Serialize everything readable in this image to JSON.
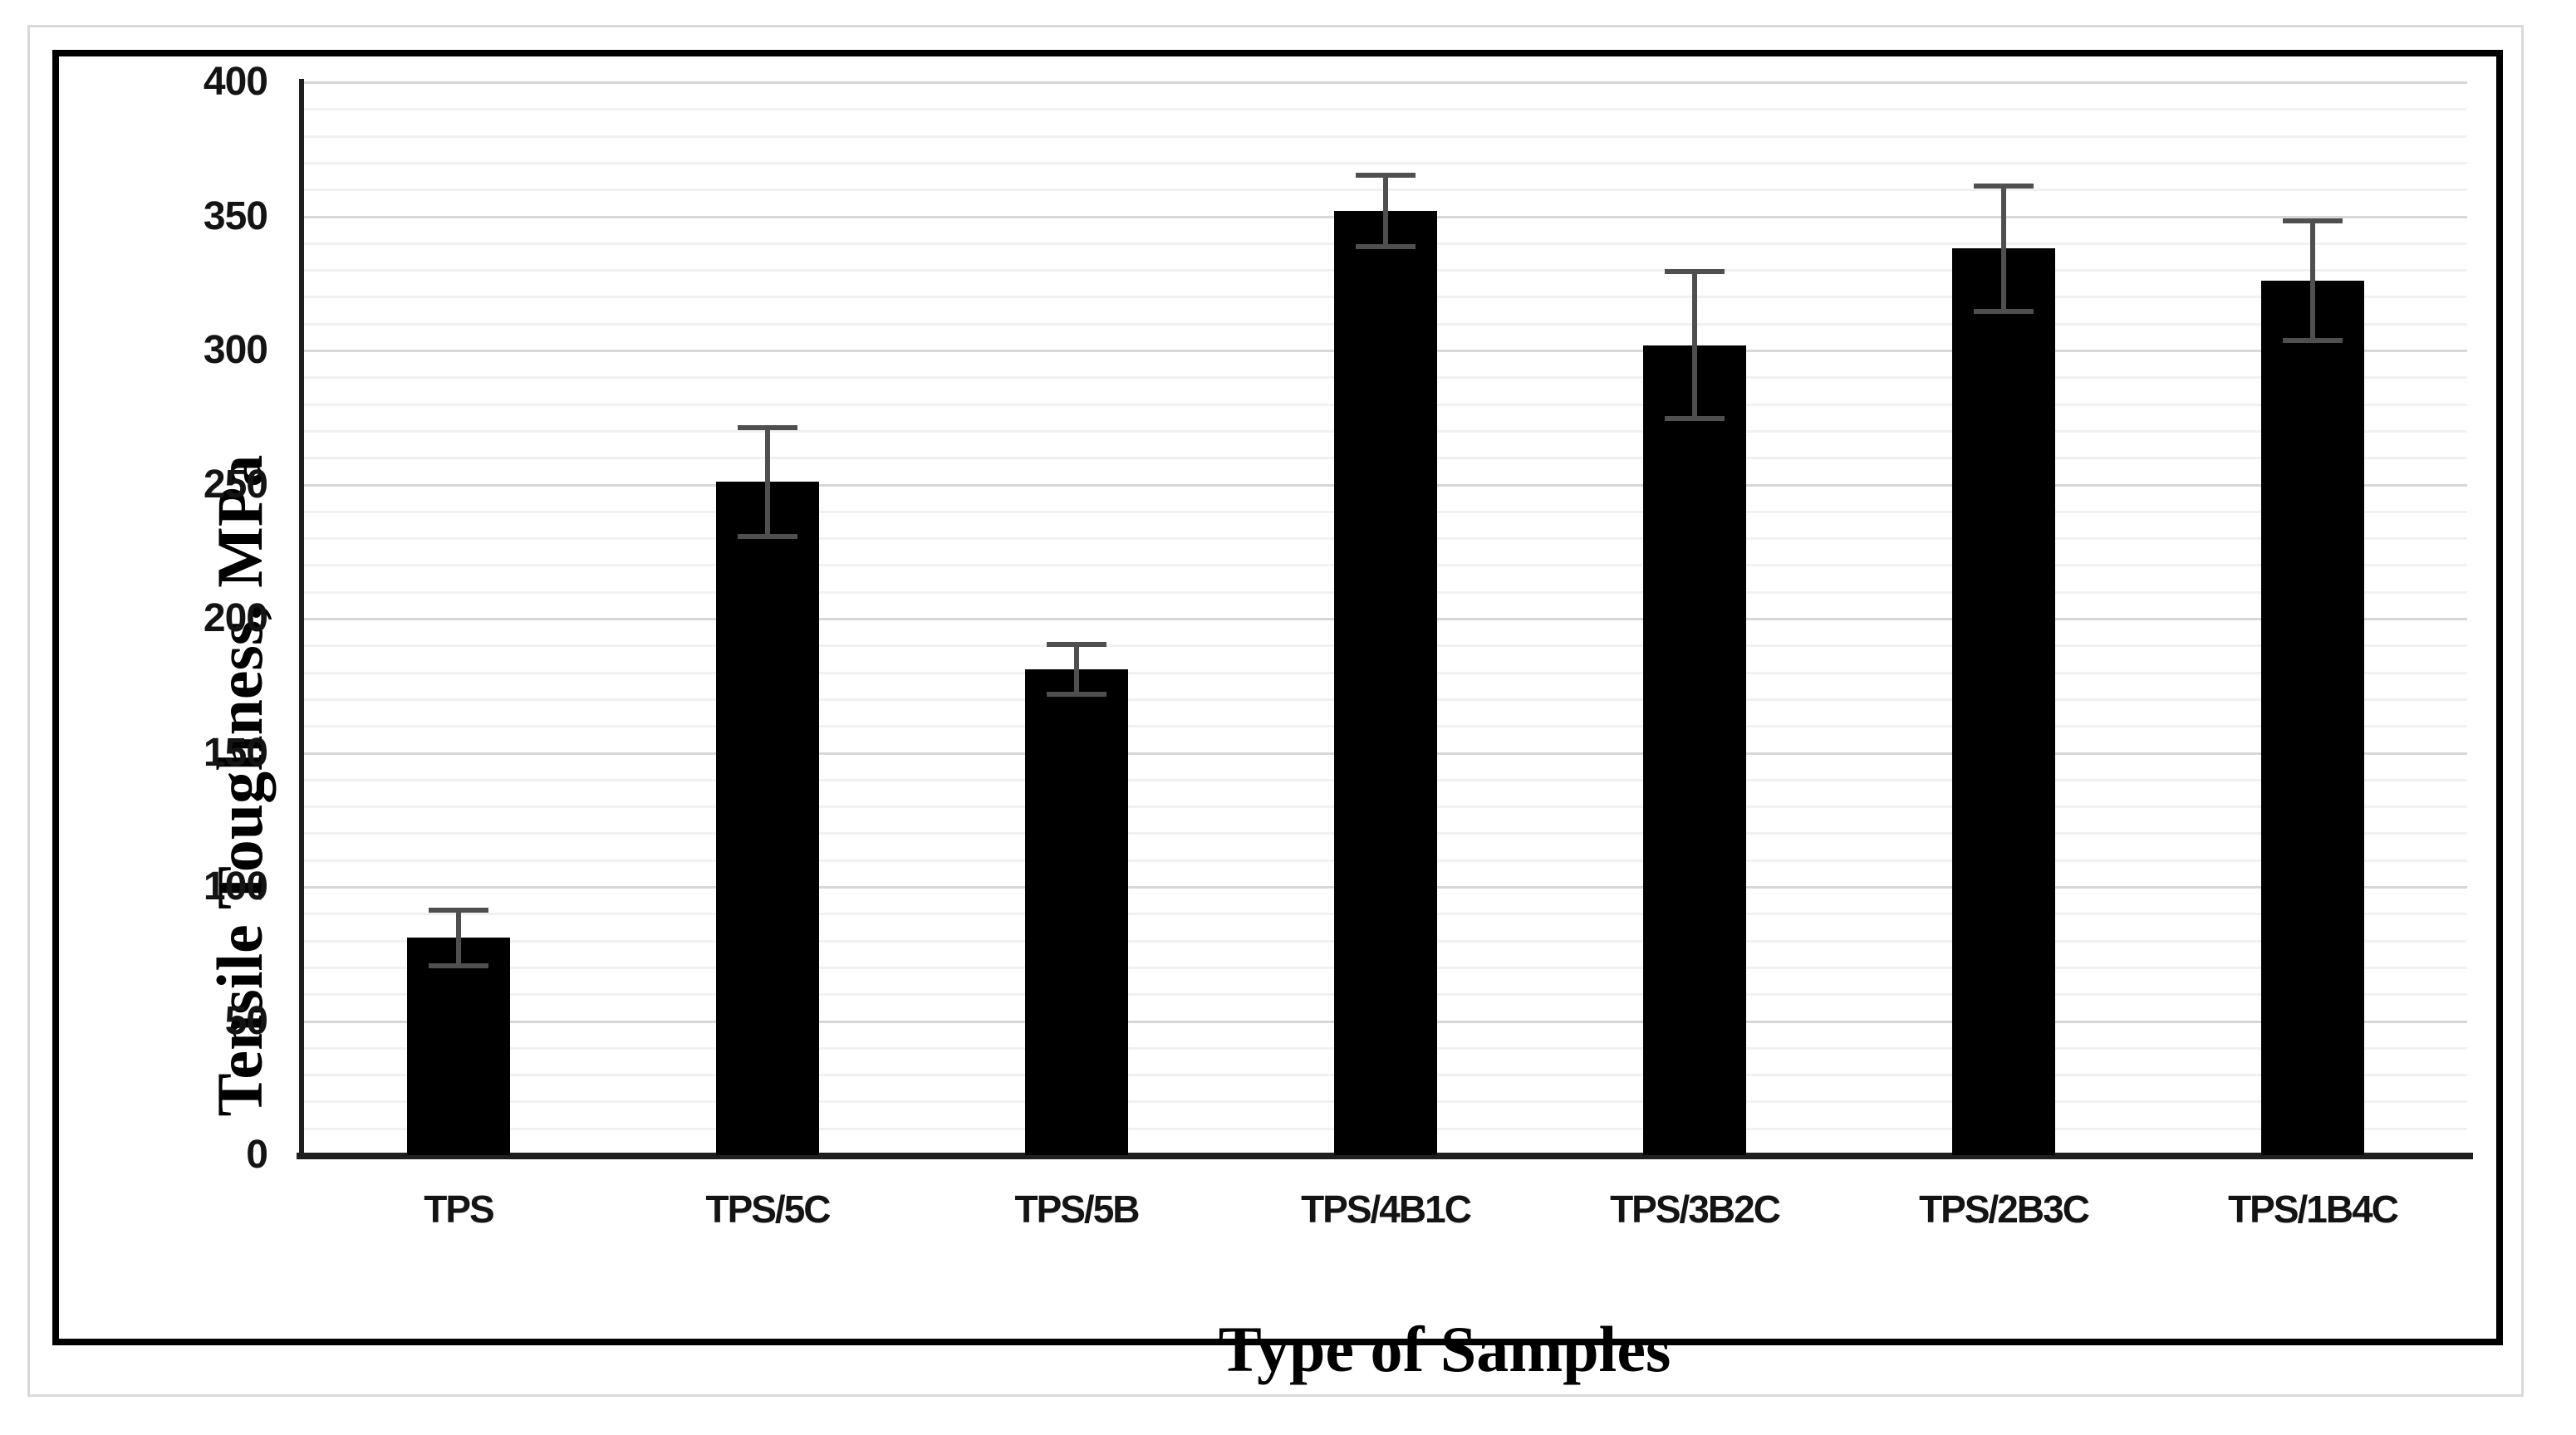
{
  "figure": {
    "background": "#ffffff",
    "frame_color": "#d9d9d9",
    "border_color": "#000000"
  },
  "chart_data": {
    "type": "bar",
    "title": "",
    "categories": [
      "TPS",
      "TPS/5C",
      "TPS/5B",
      "TPS/4B1C",
      "TPS/3B2C",
      "TPS/2B3C",
      "TPS/1B4C"
    ],
    "series": [
      {
        "name": "Tensile Toughness",
        "values": [
          81,
          251,
          181,
          352,
          302,
          338,
          326
        ],
        "errors": [
          10,
          20,
          9,
          13,
          27,
          23,
          22
        ]
      }
    ],
    "xlabel": "Type of Samples",
    "ylabel": "Tensile Toughness, MPa",
    "ylim": [
      0,
      400
    ],
    "ytick_step": 50,
    "yticks": [
      "0",
      "50",
      "100",
      "150",
      "200",
      "250",
      "300",
      "350",
      "400"
    ],
    "minor_grid_step": 10,
    "grid": "horizontal",
    "legend_position": "none",
    "bar_color": "#000000",
    "error_bar_color": "#4f4f4f",
    "gridline_minor_color": "#f1f1f1",
    "gridline_major_color": "#d7d7d7",
    "axis_line_color": "#1f1f1f"
  }
}
